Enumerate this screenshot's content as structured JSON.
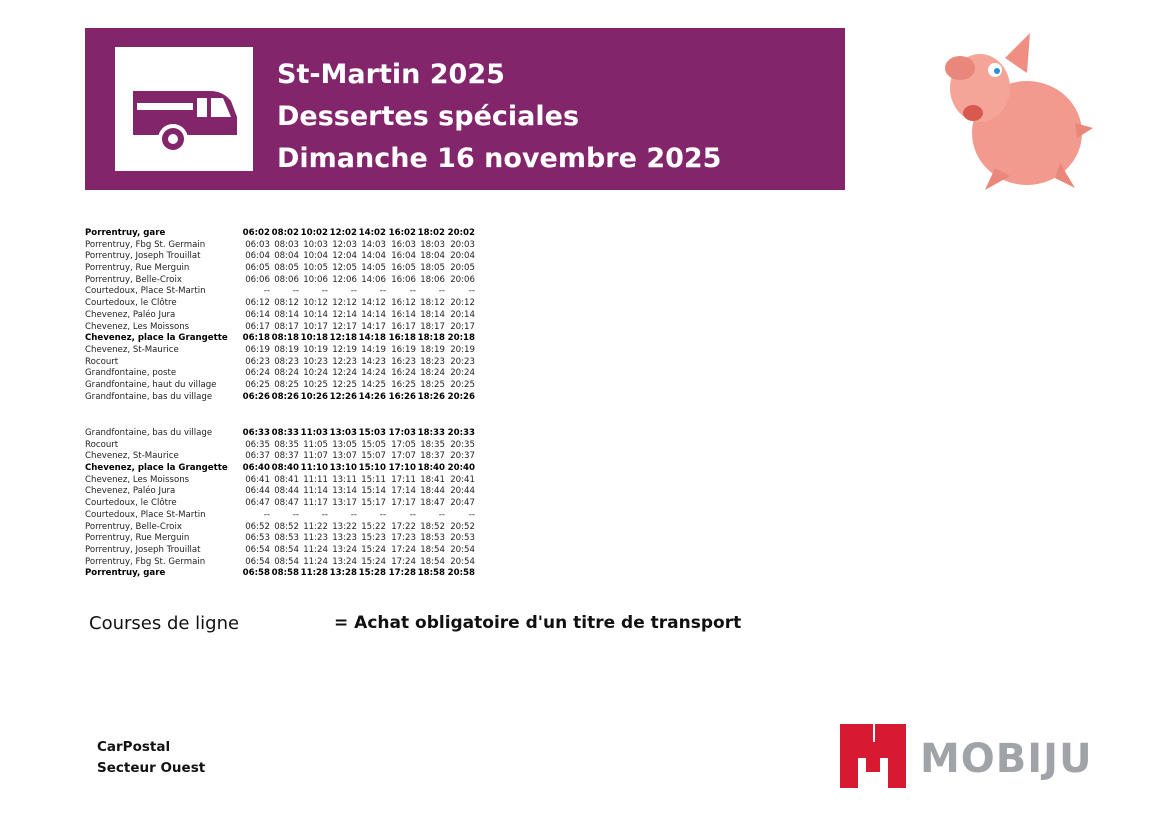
{
  "header": {
    "line1": "St-Martin 2025",
    "line2": "Dessertes spéciales",
    "line3": "Dimanche 16 novembre 2025",
    "banner_color": "#82256b",
    "icon": "bus-icon"
  },
  "outbound": [
    {
      "stop": "Porrentruy, gare",
      "emphasis": "all",
      "times": [
        "06:02",
        "08:02",
        "10:02",
        "12:02",
        "14:02",
        "16:02",
        "18:02",
        "20:02"
      ]
    },
    {
      "stop": "Porrentruy, Fbg St. Germain",
      "emphasis": "none",
      "times": [
        "06:03",
        "08:03",
        "10:03",
        "12:03",
        "14:03",
        "16:03",
        "18:03",
        "20:03"
      ]
    },
    {
      "stop": "Porrentruy, Joseph Trouillat",
      "emphasis": "none",
      "times": [
        "06:04",
        "08:04",
        "10:04",
        "12:04",
        "14:04",
        "16:04",
        "18:04",
        "20:04"
      ]
    },
    {
      "stop": "Porrentruy, Rue Merguin",
      "emphasis": "none",
      "times": [
        "06:05",
        "08:05",
        "10:05",
        "12:05",
        "14:05",
        "16:05",
        "18:05",
        "20:05"
      ]
    },
    {
      "stop": "Porrentruy, Belle-Croix",
      "emphasis": "none",
      "times": [
        "06:06",
        "08:06",
        "10:06",
        "12:06",
        "14:06",
        "16:06",
        "18:06",
        "20:06"
      ]
    },
    {
      "stop": "Courtedoux, Place St-Martin",
      "emphasis": "none",
      "times": [
        "--",
        "--",
        "--",
        "--",
        "--",
        "--",
        "--",
        "--"
      ]
    },
    {
      "stop": "Courtedoux, le Clôtre",
      "emphasis": "none",
      "times": [
        "06:12",
        "08:12",
        "10:12",
        "12:12",
        "14:12",
        "16:12",
        "18:12",
        "20:12"
      ]
    },
    {
      "stop": "Chevenez, Paléo Jura",
      "emphasis": "none",
      "times": [
        "06:14",
        "08:14",
        "10:14",
        "12:14",
        "14:14",
        "16:14",
        "18:14",
        "20:14"
      ]
    },
    {
      "stop": "Chevenez, Les Moissons",
      "emphasis": "none",
      "times": [
        "06:17",
        "08:17",
        "10:17",
        "12:17",
        "14:17",
        "16:17",
        "18:17",
        "20:17"
      ]
    },
    {
      "stop": "Chevenez, place la Grangette",
      "emphasis": "all",
      "times": [
        "06:18",
        "08:18",
        "10:18",
        "12:18",
        "14:18",
        "16:18",
        "18:18",
        "20:18"
      ]
    },
    {
      "stop": "Chevenez, St-Maurice",
      "emphasis": "none",
      "times": [
        "06:19",
        "08:19",
        "10:19",
        "12:19",
        "14:19",
        "16:19",
        "18:19",
        "20:19"
      ]
    },
    {
      "stop": "Rocourt",
      "emphasis": "none",
      "times": [
        "06:23",
        "08:23",
        "10:23",
        "12:23",
        "14:23",
        "16:23",
        "18:23",
        "20:23"
      ]
    },
    {
      "stop": "Grandfontaine, poste",
      "emphasis": "none",
      "times": [
        "06:24",
        "08:24",
        "10:24",
        "12:24",
        "14:24",
        "16:24",
        "18:24",
        "20:24"
      ]
    },
    {
      "stop": "Grandfontaine, haut du village",
      "emphasis": "none",
      "times": [
        "06:25",
        "08:25",
        "10:25",
        "12:25",
        "14:25",
        "16:25",
        "18:25",
        "20:25"
      ]
    },
    {
      "stop": "Grandfontaine, bas du village",
      "emphasis": "times",
      "times": [
        "06:26",
        "08:26",
        "10:26",
        "12:26",
        "14:26",
        "16:26",
        "18:26",
        "20:26"
      ]
    }
  ],
  "inbound": [
    {
      "stop": "Grandfontaine, bas du village",
      "emphasis": "times",
      "times": [
        "06:33",
        "08:33",
        "11:03",
        "13:03",
        "15:03",
        "17:03",
        "18:33",
        "20:33"
      ]
    },
    {
      "stop": "Rocourt",
      "emphasis": "none",
      "times": [
        "06:35",
        "08:35",
        "11:05",
        "13:05",
        "15:05",
        "17:05",
        "18:35",
        "20:35"
      ]
    },
    {
      "stop": "Chevenez, St-Maurice",
      "emphasis": "none",
      "times": [
        "06:37",
        "08:37",
        "11:07",
        "13:07",
        "15:07",
        "17:07",
        "18:37",
        "20:37"
      ]
    },
    {
      "stop": "Chevenez, place la Grangette",
      "emphasis": "all",
      "times": [
        "06:40",
        "08:40",
        "11:10",
        "13:10",
        "15:10",
        "17:10",
        "18:40",
        "20:40"
      ]
    },
    {
      "stop": "Chevenez, Les Moissons",
      "emphasis": "none",
      "times": [
        "06:41",
        "08:41",
        "11:11",
        "13:11",
        "15:11",
        "17:11",
        "18:41",
        "20:41"
      ]
    },
    {
      "stop": "Chevenez, Paléo Jura",
      "emphasis": "none",
      "times": [
        "06:44",
        "08:44",
        "11:14",
        "13:14",
        "15:14",
        "17:14",
        "18:44",
        "20:44"
      ]
    },
    {
      "stop": "Courtedoux, le Clôtre",
      "emphasis": "none",
      "times": [
        "06:47",
        "08:47",
        "11:17",
        "13:17",
        "15:17",
        "17:17",
        "18:47",
        "20:47"
      ]
    },
    {
      "stop": "Courtedoux, Place St-Martin",
      "emphasis": "none",
      "times": [
        "--",
        "--",
        "--",
        "--",
        "--",
        "--",
        "--",
        "--"
      ]
    },
    {
      "stop": "Porrentruy, Belle-Croix",
      "emphasis": "none",
      "times": [
        "06:52",
        "08:52",
        "11:22",
        "13:22",
        "15:22",
        "17:22",
        "18:52",
        "20:52"
      ]
    },
    {
      "stop": "Porrentruy, Rue Merguin",
      "emphasis": "none",
      "times": [
        "06:53",
        "08:53",
        "11:23",
        "13:23",
        "15:23",
        "17:23",
        "18:53",
        "20:53"
      ]
    },
    {
      "stop": "Porrentruy, Joseph Trouillat",
      "emphasis": "none",
      "times": [
        "06:54",
        "08:54",
        "11:24",
        "13:24",
        "15:24",
        "17:24",
        "18:54",
        "20:54"
      ]
    },
    {
      "stop": "Porrentruy, Fbg St. Germain",
      "emphasis": "none",
      "times": [
        "06:54",
        "08:54",
        "11:24",
        "13:24",
        "15:24",
        "17:24",
        "18:54",
        "20:54"
      ]
    },
    {
      "stop": "Porrentruy, gare",
      "emphasis": "all",
      "times": [
        "06:58",
        "08:58",
        "11:28",
        "13:28",
        "15:28",
        "17:28",
        "18:58",
        "20:58"
      ]
    }
  ],
  "legend": {
    "label": "Courses de ligne",
    "note": "= Achat obligatoire d'un titre de transport"
  },
  "operator": {
    "line1": "CarPostal",
    "line2": "Secteur Ouest"
  },
  "logo": {
    "text": "MOBIJU",
    "red": "#d71a32",
    "grey": "#a0a4a8"
  },
  "mascot": "pig-mascot"
}
